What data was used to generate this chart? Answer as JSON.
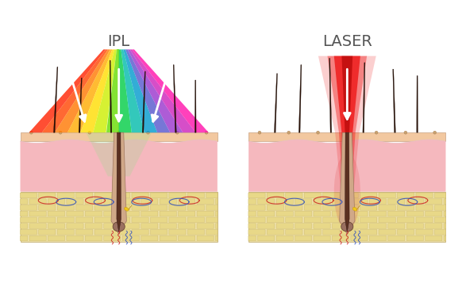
{
  "title_ipl": "IPL",
  "title_laser": "LASER",
  "title_fontsize": 14,
  "title_color": "#555555",
  "bg_color": "#ffffff",
  "skin_epidermis_color": "#f2c8a0",
  "skin_dermis1_color": "#f5b8be",
  "skin_dermis2_color": "#f8c8cc",
  "skin_fat_color": "#ede0a8",
  "skin_fat_brick_color": "#e8d888",
  "skin_fat_brick_edge": "#d0bc70",
  "hair_dark": "#2a1005",
  "hair_mid": "#6b3820",
  "follicle_outer": "#c89878",
  "follicle_inner": "#8a6050",
  "follicle_bulb": "#7a5040",
  "sebum_color": "#f0d020",
  "blood_red": "#cc2020",
  "blood_blue": "#3050bb",
  "arrow_white": "#ffffff",
  "laser_red_bright": "#ee1010",
  "laser_red_dark": "#cc0000",
  "ipl_strip_colors": [
    "#ff2200",
    "#ff6600",
    "#ffcc00",
    "#aaee00",
    "#00cc00",
    "#00cc88",
    "#0088cc",
    "#aa44cc",
    "#ff22aa"
  ],
  "surface_dot_color": "#d4a870",
  "wavy_skin_border": "#e8c0c4"
}
